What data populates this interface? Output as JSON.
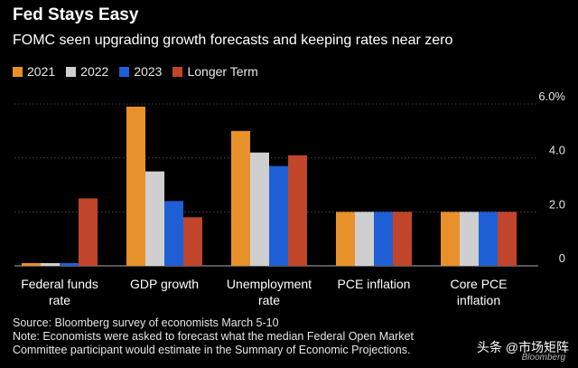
{
  "header": {
    "title": "Fed Stays Easy",
    "subtitle": "FOMC seen upgrading growth forecasts and keeping rates near zero"
  },
  "footer": {
    "source": "Source: Bloomberg survey of economists March 5-10",
    "note_line1": "Note: Economists were asked to forecast what the median Federal Open Market",
    "note_line2": "Committee participant would estimate in the Summary of Economic Projections."
  },
  "watermark": {
    "text": "头条 @市场矩阵",
    "sub": "Bloomberg"
  },
  "chart_data": {
    "type": "bar",
    "title": "Fed Stays Easy",
    "subtitle": "FOMC seen upgrading growth forecasts and keeping rates near zero",
    "categories": [
      [
        "Federal funds",
        "rate"
      ],
      [
        "GDP growth"
      ],
      [
        "Unemployment",
        "rate"
      ],
      [
        "PCE inflation"
      ],
      [
        "Core PCE",
        "inflation"
      ]
    ],
    "series": [
      {
        "name": "2021",
        "color": "#e8902a",
        "values": [
          0.1,
          5.9,
          5.0,
          2.0,
          2.0
        ]
      },
      {
        "name": "2022",
        "color": "#cfcfcf",
        "values": [
          0.1,
          3.5,
          4.2,
          2.0,
          2.0
        ]
      },
      {
        "name": "2023",
        "color": "#1f5fd6",
        "values": [
          0.1,
          2.4,
          3.7,
          2.0,
          2.0
        ]
      },
      {
        "name": "Longer Term",
        "color": "#c0452a",
        "values": [
          2.5,
          1.8,
          4.1,
          2.0,
          2.0
        ]
      }
    ],
    "yticks": [
      "0",
      "2.0",
      "4.0",
      "6.0%"
    ],
    "ytick_values": [
      0,
      2,
      4,
      6
    ],
    "ylim": [
      0,
      6
    ],
    "grid": true,
    "legend_position": "top-left"
  }
}
